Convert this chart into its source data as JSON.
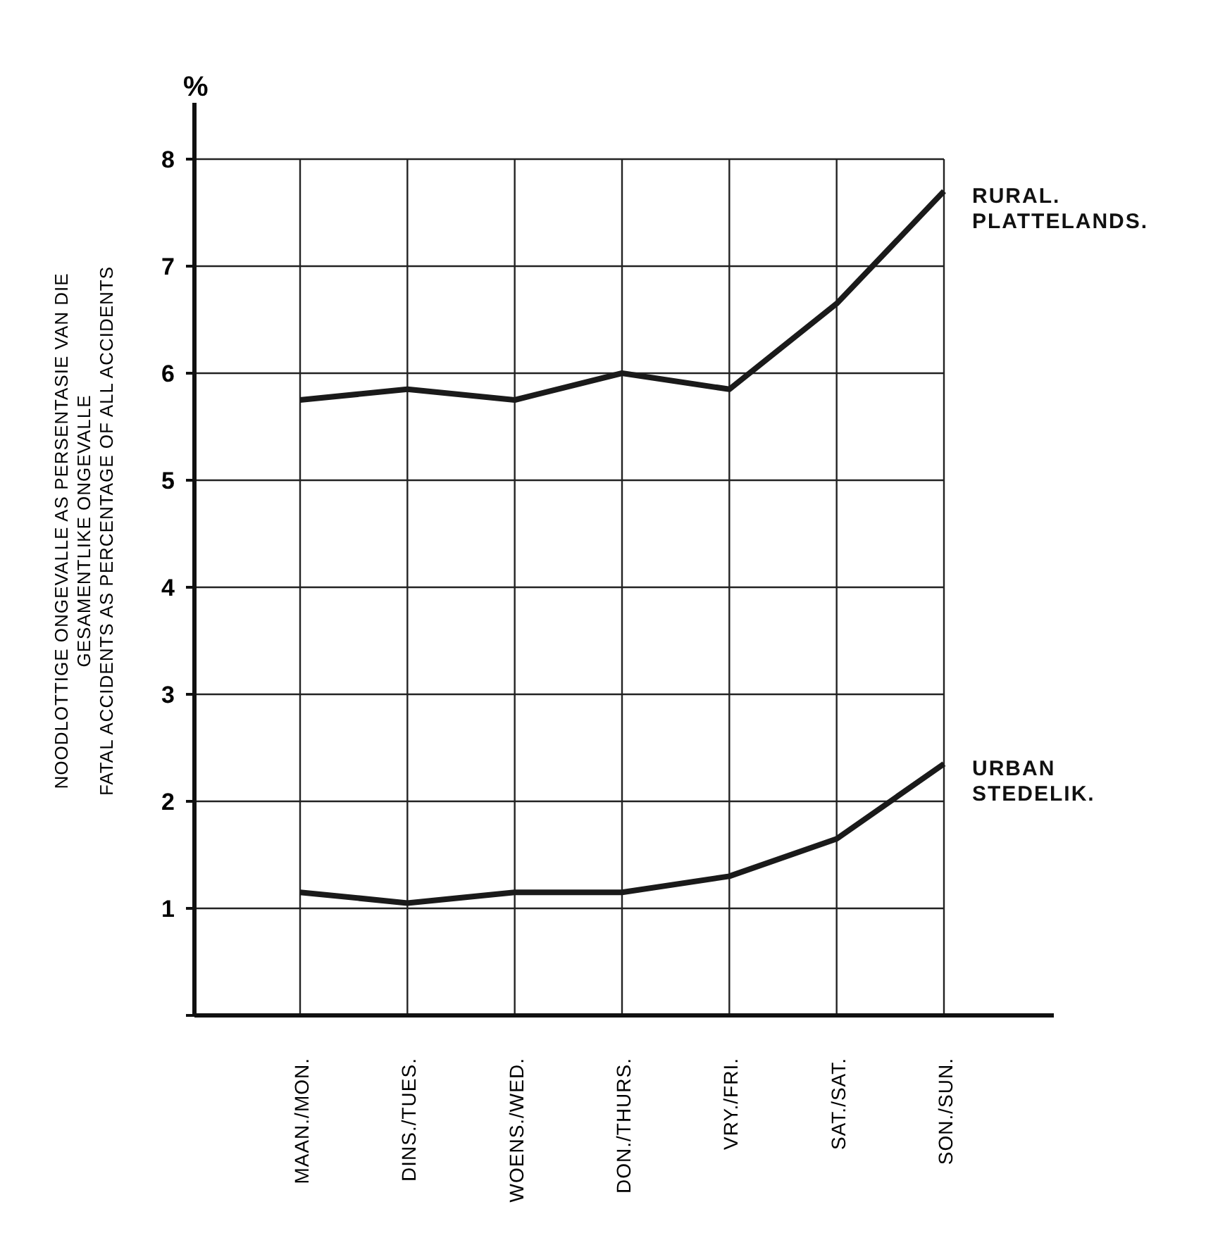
{
  "chart_data": {
    "type": "line",
    "ylabel": "NOODLOTTIGE ONGEVALLE AS PERSENTASIE VAN DIE\nGESAMENTLIKE ONGEVALLE\nFATAL ACCIDENTS AS PERCENTAGE OF ALL ACCIDENTS",
    "annotations": [
      "%"
    ],
    "categories": [
      "MAAN./MON.",
      "DINS./TUES.",
      "WOENS./WED.",
      "DON./THURS.",
      "VRY./FRI.",
      "SAT./SAT.",
      "SON./SUN."
    ],
    "series": [
      {
        "name": "RURAL.\nPLATTELANDS.",
        "color": "#1a1a1a",
        "values": [
          5.75,
          5.85,
          5.75,
          6.0,
          5.85,
          6.65,
          7.7
        ]
      },
      {
        "name": "URBAN\nSTEDELIK.",
        "color": "#1a1a1a",
        "values": [
          1.15,
          1.05,
          1.15,
          1.15,
          1.3,
          1.65,
          2.35
        ]
      }
    ],
    "ylim": [
      0,
      8
    ],
    "yticks": [
      {
        "value": 0,
        "label": null
      },
      1,
      2,
      3,
      4,
      5,
      6,
      7,
      8
    ],
    "grid": true,
    "legend": "right",
    "marker": "none",
    "line_style": "solid"
  }
}
